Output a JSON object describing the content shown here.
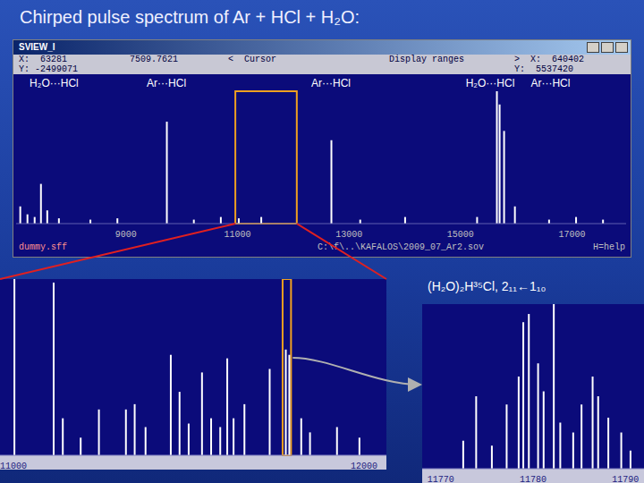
{
  "title": "Chirped pulse spectrum of Ar + HCl + H₂O:",
  "window": {
    "name": "SVIEW_I",
    "status": [
      [
        "X:  63281",
        "7509.7621",
        "<  Cursor",
        "Display ranges",
        ">  X:  640402"
      ],
      [
        "Y: -2499071",
        "Y:  5537420"
      ]
    ],
    "footer": [
      "dummy.sff",
      "C:\\f\\..\\KAFALOS\\2009_07_Ar2.sov",
      "H=help"
    ]
  },
  "chart_data": [
    {
      "type": "bar",
      "x": [
        7097,
        7226,
        7355,
        7468,
        7581,
        7790,
        8355,
        8839,
        9726,
        10210,
        10694,
        11016,
        11419,
        12677,
        13194,
        13999,
        15290,
        15645,
        15694,
        15774,
        15968,
        16581,
        17065,
        17548
      ],
      "values": [
        13,
        7,
        5,
        30,
        10,
        4,
        3,
        4,
        77,
        3,
        5,
        4,
        5,
        63,
        3,
        5,
        5,
        100,
        90,
        70,
        13,
        3,
        5,
        3
      ],
      "color": "#ffffff",
      "xlim": [
        7030,
        17970
      ],
      "xticks": [
        9000,
        11000,
        13000,
        15000,
        17000
      ],
      "ylim": [
        0,
        100
      ],
      "tick_labels": "x",
      "annotations": [
        {
          "text": "H₂O···HCl",
          "x": 7710
        },
        {
          "text": "Ar···HCl",
          "x": 9726
        },
        {
          "text": "Ar···HCl",
          "x": 12677
        },
        {
          "text": "H₂O···HCl",
          "x": 15532
        },
        {
          "text": "Ar···HCl",
          "x": 16613
        }
      ]
    },
    {
      "type": "bar",
      "x": [
        11003,
        11115,
        11141,
        11192,
        11244,
        11321,
        11346,
        11377,
        11449,
        11474,
        11500,
        11538,
        11564,
        11590,
        11610,
        11628,
        11659,
        11731,
        11777,
        11787,
        11821,
        11846,
        11923,
        11987
      ],
      "values": [
        100,
        98,
        21,
        10,
        26,
        26,
        29,
        16,
        57,
        36,
        18,
        47,
        21,
        16,
        55,
        21,
        29,
        49,
        60,
        57,
        21,
        13,
        16,
        10
      ],
      "color": "#ffffff",
      "xlim": [
        10962,
        12064
      ],
      "xticks": [
        11000,
        12000
      ],
      "ylim": [
        0,
        100
      ],
      "tick_labels": "x"
    },
    {
      "type": "bar",
      "title": "(H₂O)₂H³⁵Cl, 2₁₁←1₁₀",
      "x": [
        11772.4,
        11773.8,
        11775.5,
        11777.1,
        11778.4,
        11778.9,
        11779.5,
        11780.5,
        11781.1,
        11782.2,
        11782.9,
        11784.3,
        11785.2,
        11786.4,
        11787.0,
        11788.1,
        11789.5,
        11790.5
      ],
      "values": [
        17,
        44,
        14,
        39,
        56,
        89,
        94,
        64,
        47,
        100,
        28,
        22,
        39,
        56,
        44,
        31,
        22,
        11
      ],
      "color": "#ffffff",
      "xlim": [
        11768,
        11792
      ],
      "xticks": [
        11770,
        11780,
        11790
      ],
      "ylim": [
        0,
        100
      ],
      "tick_labels": "x"
    }
  ]
}
